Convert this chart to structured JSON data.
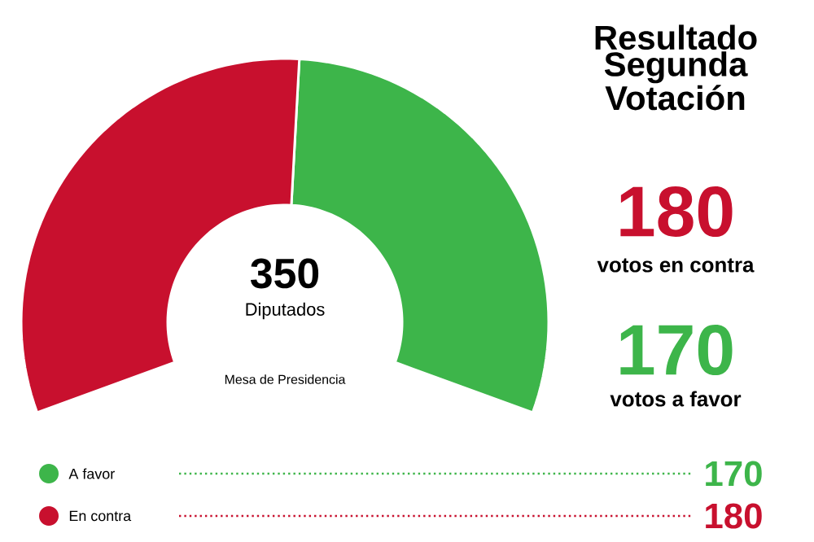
{
  "chart_data": {
    "type": "donut",
    "title": "Resultado Segunda Votación",
    "categories": [
      "A favor",
      "En contra"
    ],
    "values": [
      170,
      180
    ],
    "value_labels": [
      "170",
      "180"
    ],
    "colors": [
      "#3db54a",
      "#c8102e"
    ],
    "data_labels": true,
    "legend": "bottom",
    "annotations": [
      "350",
      "Diputados",
      "Mesa de Presidencia",
      "votos a favor",
      "votos en contra"
    ]
  }
}
